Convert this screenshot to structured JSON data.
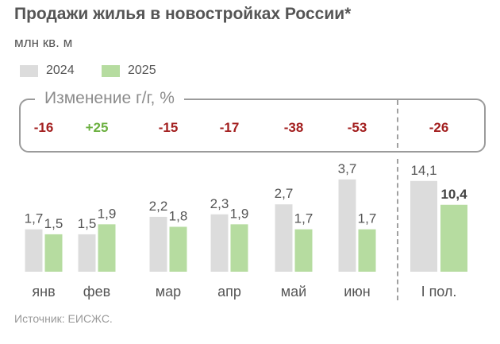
{
  "title": "Продажи жилья в новостройках России*",
  "subtitle": "млн кв. м",
  "legend": [
    {
      "label": "2024",
      "color": "#dcdcdc"
    },
    {
      "label": "2025",
      "color": "#b6dca0"
    }
  ],
  "change_panel": {
    "title": "Изменение г/г, %",
    "values": [
      "-16",
      "+25",
      "-15",
      "-17",
      "-38",
      "-53",
      "-26"
    ],
    "positive_color": "#6cb041",
    "negative_color": "#a31f1f"
  },
  "chart_data": {
    "type": "bar",
    "categories": [
      "янв",
      "фев",
      "мар",
      "апр",
      "май",
      "июн",
      "I пол."
    ],
    "series": [
      {
        "name": "2024",
        "values": [
          1.7,
          1.5,
          2.2,
          2.3,
          2.7,
          3.7,
          14.1
        ],
        "labels": [
          "1,7",
          "1,5",
          "2,2",
          "2,3",
          "2,7",
          "3,7",
          "14,1"
        ],
        "color": "#dcdcdc"
      },
      {
        "name": "2025",
        "values": [
          1.5,
          1.9,
          1.8,
          1.9,
          1.7,
          1.7,
          10.4
        ],
        "labels": [
          "1,5",
          "1,9",
          "1,8",
          "1,9",
          "1,7",
          "1,7",
          "10,4"
        ],
        "color": "#b6dca0"
      }
    ],
    "notes": "Monthly bars and the I пол. bars are drawn on separate scales"
  },
  "source": "Источник: ЕИСЖС."
}
